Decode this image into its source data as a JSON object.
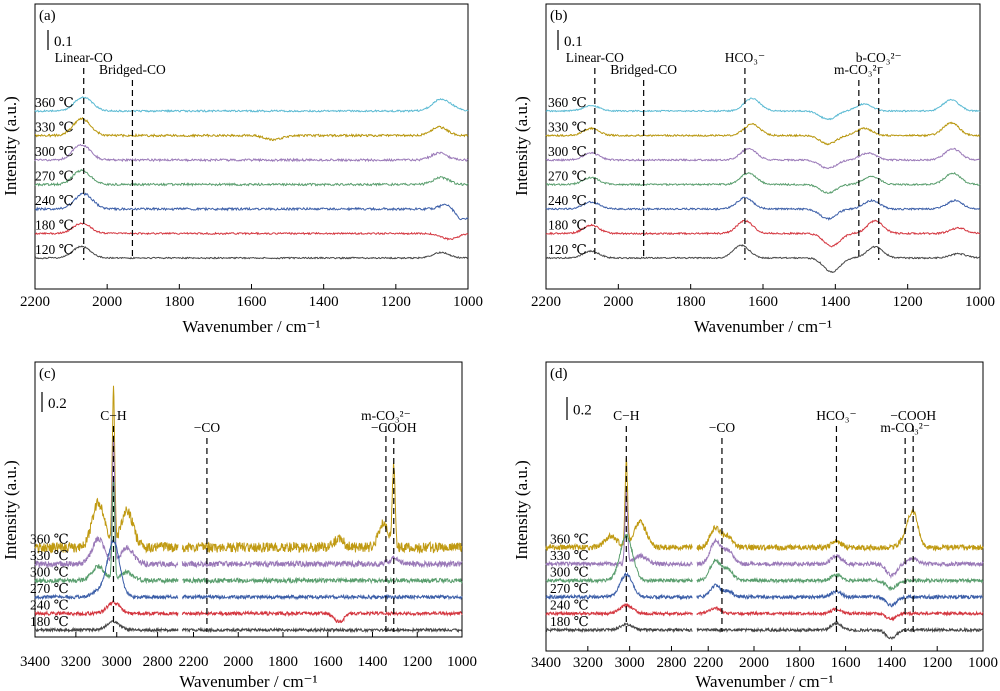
{
  "chart_data": [
    {
      "panel": "(a)",
      "type": "line",
      "xlabel": "Wavenumber / cm⁻¹",
      "ylabel": "Intensity (a.u.)",
      "xlim": [
        2200,
        1000
      ],
      "x_ticks": [
        2200,
        2000,
        1800,
        1600,
        1400,
        1200,
        1000
      ],
      "scale_bar": "0.1",
      "series": [
        {
          "name": "360 ℃",
          "color": "#5bbad3",
          "offset": 6,
          "peaks": [
            [
              2075,
              0.6
            ],
            [
              2055,
              0.5
            ],
            [
              1080,
              0.7
            ],
            [
              1050,
              0.3
            ]
          ],
          "noise": 0.06,
          "seed": 11
        },
        {
          "name": "330 ℃",
          "color": "#b8960c",
          "offset": 5,
          "peaks": [
            [
              2077,
              0.8
            ],
            [
              2058,
              0.5
            ],
            [
              1540,
              -0.3
            ],
            [
              1080,
              0.6
            ]
          ],
          "noise": 0.08,
          "seed": 12
        },
        {
          "name": "300 ℃",
          "color": "#9a79b8",
          "offset": 4,
          "peaks": [
            [
              2077,
              0.8
            ],
            [
              2058,
              0.4
            ],
            [
              1080,
              0.5
            ]
          ],
          "noise": 0.08,
          "seed": 13
        },
        {
          "name": "270 ℃",
          "color": "#5a9e6e",
          "offset": 3,
          "peaks": [
            [
              2077,
              0.7
            ],
            [
              2058,
              0.4
            ],
            [
              1075,
              0.5
            ]
          ],
          "noise": 0.08,
          "seed": 14
        },
        {
          "name": "240 ℃",
          "color": "#3b5ea8",
          "offset": 2,
          "peaks": [
            [
              2075,
              0.6
            ],
            [
              2055,
              0.6
            ],
            [
              1050,
              0.5
            ],
            [
              1020,
              -0.9
            ]
          ],
          "noise": 0.08,
          "seed": 15
        },
        {
          "name": "180 ℃",
          "color": "#d4363f",
          "offset": 1,
          "peaks": [
            [
              2077,
              0.5
            ],
            [
              2058,
              0.3
            ],
            [
              1050,
              -0.4
            ]
          ],
          "noise": 0.06,
          "seed": 16
        },
        {
          "name": "120 ℃",
          "color": "#454545",
          "offset": 0,
          "peaks": [
            [
              2077,
              0.6
            ],
            [
              2058,
              0.3
            ],
            [
              1075,
              0.4
            ]
          ],
          "noise": 0.05,
          "seed": 17
        }
      ],
      "annotations": [
        {
          "text": "Linear-CO",
          "at": 2065
        },
        {
          "text": "Bridged-CO",
          "at": 1930
        }
      ]
    },
    {
      "panel": "(b)",
      "type": "line",
      "xlabel": "Wavenumber / cm⁻¹",
      "ylabel": "Intensity (a.u.)",
      "xlim": [
        2200,
        1000
      ],
      "x_ticks": [
        2200,
        2000,
        1800,
        1600,
        1400,
        1200,
        1000
      ],
      "scale_bar": "0.1",
      "series": [
        {
          "name": "360 ℃",
          "color": "#5bbad3",
          "offset": 6,
          "peaks": [
            [
              2075,
              0.4
            ],
            [
              1630,
              0.9
            ],
            [
              1420,
              -0.6
            ],
            [
              1320,
              0.5
            ],
            [
              1080,
              0.8
            ]
          ],
          "noise": 0.05,
          "seed": 21
        },
        {
          "name": "330 ℃",
          "color": "#b8960c",
          "offset": 5,
          "peaks": [
            [
              2075,
              0.5
            ],
            [
              1630,
              0.8
            ],
            [
              1420,
              -0.6
            ],
            [
              1320,
              0.5
            ],
            [
              1080,
              0.9
            ]
          ],
          "noise": 0.06,
          "seed": 22
        },
        {
          "name": "300 ℃",
          "color": "#9a79b8",
          "offset": 4,
          "peaks": [
            [
              2075,
              0.5
            ],
            [
              1640,
              0.8
            ],
            [
              1420,
              -0.6
            ],
            [
              1310,
              0.5
            ],
            [
              1075,
              0.8
            ]
          ],
          "noise": 0.06,
          "seed": 23
        },
        {
          "name": "270 ℃",
          "color": "#5a9e6e",
          "offset": 3,
          "peaks": [
            [
              2075,
              0.5
            ],
            [
              1640,
              0.8
            ],
            [
              1420,
              -0.6
            ],
            [
              1300,
              0.6
            ],
            [
              1075,
              0.8
            ]
          ],
          "noise": 0.06,
          "seed": 24
        },
        {
          "name": "240 ℃",
          "color": "#3b5ea8",
          "offset": 2,
          "peaks": [
            [
              2075,
              0.5
            ],
            [
              1650,
              0.8
            ],
            [
              1420,
              -0.7
            ],
            [
              1300,
              0.6
            ],
            [
              1070,
              0.6
            ]
          ],
          "noise": 0.06,
          "seed": 25
        },
        {
          "name": "180 ℃",
          "color": "#d4363f",
          "offset": 1,
          "peaks": [
            [
              2075,
              0.6
            ],
            [
              1650,
              0.9
            ],
            [
              1410,
              -0.9
            ],
            [
              1290,
              0.9
            ],
            [
              1060,
              0.4
            ]
          ],
          "noise": 0.06,
          "seed": 26
        },
        {
          "name": "120 ℃",
          "color": "#454545",
          "offset": 0,
          "peaks": [
            [
              2075,
              0.5
            ],
            [
              1660,
              0.9
            ],
            [
              1410,
              -1.0
            ],
            [
              1290,
              0.8
            ],
            [
              1060,
              0.3
            ]
          ],
          "noise": 0.05,
          "seed": 27
        }
      ],
      "annotations": [
        {
          "text": "Linear-CO",
          "at": 2065
        },
        {
          "text": "Bridged-CO",
          "at": 1930
        },
        {
          "text": "HCO₃⁻",
          "at": 1650
        },
        {
          "text": "m-CO₃²⁻",
          "at": 1335
        },
        {
          "text": "b-CO₃²⁻",
          "at": 1280
        }
      ]
    },
    {
      "panel": "(c)",
      "type": "line",
      "xlabel": "Wavenumber / cm⁻¹",
      "ylabel": "Intensity (a.u.)",
      "x_segments": [
        [
          3400,
          2700
        ],
        [
          2250,
          1000
        ]
      ],
      "x_ticks": [
        3400,
        3200,
        3000,
        2800,
        2200,
        2000,
        1800,
        1600,
        1400,
        1200,
        1000
      ],
      "scale_bar": "0.2",
      "series": [
        {
          "name": "360 ℃",
          "color": "#c09a12",
          "offset": 5,
          "peaks": [
            [
              3016,
              5.5
            ],
            [
              3090,
              1.6
            ],
            [
              2950,
              1.3
            ],
            [
              1350,
              0.9
            ],
            [
              1305,
              2.8
            ],
            [
              1550,
              0.3
            ]
          ],
          "noise": 0.18,
          "seed": 31
        },
        {
          "name": "330 ℃",
          "color": "#9a79b8",
          "offset": 4,
          "peaks": [
            [
              3016,
              4.5
            ],
            [
              3090,
              0.9
            ],
            [
              2950,
              0.6
            ],
            [
              1305,
              0.2
            ]
          ],
          "noise": 0.1,
          "seed": 32
        },
        {
          "name": "300 ℃",
          "color": "#5a9e6e",
          "offset": 3,
          "peaks": [
            [
              3016,
              3.6
            ],
            [
              3090,
              0.5
            ],
            [
              2950,
              0.3
            ]
          ],
          "noise": 0.08,
          "seed": 33
        },
        {
          "name": "270 ℃",
          "color": "#3b5ea8",
          "offset": 2,
          "peaks": [
            [
              3016,
              2.0
            ],
            [
              3090,
              0.2
            ]
          ],
          "noise": 0.06,
          "seed": 34
        },
        {
          "name": "240 ℃",
          "color": "#d4363f",
          "offset": 1,
          "peaks": [
            [
              3016,
              0.4
            ],
            [
              1550,
              -0.3
            ]
          ],
          "noise": 0.06,
          "seed": 35
        },
        {
          "name": "180 ℃",
          "color": "#454545",
          "offset": 0,
          "peaks": [
            [
              3016,
              0.3
            ]
          ],
          "noise": 0.05,
          "seed": 36
        }
      ],
      "annotations": [
        {
          "text": "C−H",
          "at": 3016
        },
        {
          "text": "−CO",
          "at": 2140
        },
        {
          "text": "m-CO₃²⁻",
          "at": 1340
        },
        {
          "text": "−COOH",
          "at": 1305
        }
      ]
    },
    {
      "panel": "(d)",
      "type": "line",
      "xlabel": "Wavenumber / cm⁻¹",
      "ylabel": "Intensity (a.u.)",
      "x_segments": [
        [
          3400,
          2700
        ],
        [
          2250,
          1000
        ]
      ],
      "x_ticks": [
        3400,
        3200,
        3000,
        2800,
        2200,
        2000,
        1800,
        1600,
        1400,
        1200,
        1000
      ],
      "scale_bar": "0.2",
      "series": [
        {
          "name": "360 ℃",
          "color": "#c09a12",
          "offset": 5,
          "peaks": [
            [
              3016,
              3.0
            ],
            [
              3090,
              0.4
            ],
            [
              2950,
              0.9
            ],
            [
              2170,
              0.7
            ],
            [
              2115,
              0.4
            ],
            [
              1640,
              0.2
            ],
            [
              1305,
              1.2
            ],
            [
              1340,
              0.3
            ]
          ],
          "noise": 0.1,
          "seed": 41
        },
        {
          "name": "330 ℃",
          "color": "#9a79b8",
          "offset": 4,
          "peaks": [
            [
              3016,
              2.6
            ],
            [
              2950,
              0.3
            ],
            [
              2170,
              0.8
            ],
            [
              2115,
              0.5
            ],
            [
              1640,
              0.3
            ],
            [
              1400,
              -0.4
            ],
            [
              1305,
              0.2
            ]
          ],
          "noise": 0.07,
          "seed": 42
        },
        {
          "name": "300 ℃",
          "color": "#5a9e6e",
          "offset": 3,
          "peaks": [
            [
              3016,
              1.6
            ],
            [
              2170,
              0.7
            ],
            [
              2115,
              0.4
            ],
            [
              1640,
              0.2
            ],
            [
              1400,
              -0.3
            ]
          ],
          "noise": 0.06,
          "seed": 43
        },
        {
          "name": "270 ℃",
          "color": "#3b5ea8",
          "offset": 2,
          "peaks": [
            [
              3016,
              0.8
            ],
            [
              2170,
              0.4
            ],
            [
              2115,
              0.2
            ],
            [
              1640,
              0.2
            ],
            [
              1400,
              -0.3
            ]
          ],
          "noise": 0.06,
          "seed": 44
        },
        {
          "name": "240 ℃",
          "color": "#d4363f",
          "offset": 1,
          "peaks": [
            [
              3016,
              0.3
            ],
            [
              2170,
              0.2
            ],
            [
              1640,
              0.15
            ],
            [
              1400,
              -0.2
            ]
          ],
          "noise": 0.05,
          "seed": 45
        },
        {
          "name": "180 ℃",
          "color": "#454545",
          "offset": 0,
          "peaks": [
            [
              3016,
              0.2
            ],
            [
              1640,
              0.25
            ],
            [
              1400,
              -0.3
            ]
          ],
          "noise": 0.05,
          "seed": 46
        }
      ],
      "annotations": [
        {
          "text": "C−H",
          "at": 3016
        },
        {
          "text": "−CO",
          "at": 2140
        },
        {
          "text": "HCO₃⁻",
          "at": 1640
        },
        {
          "text": "m-CO₃²⁻",
          "at": 1340
        },
        {
          "text": "−COOH",
          "at": 1305
        }
      ]
    }
  ]
}
